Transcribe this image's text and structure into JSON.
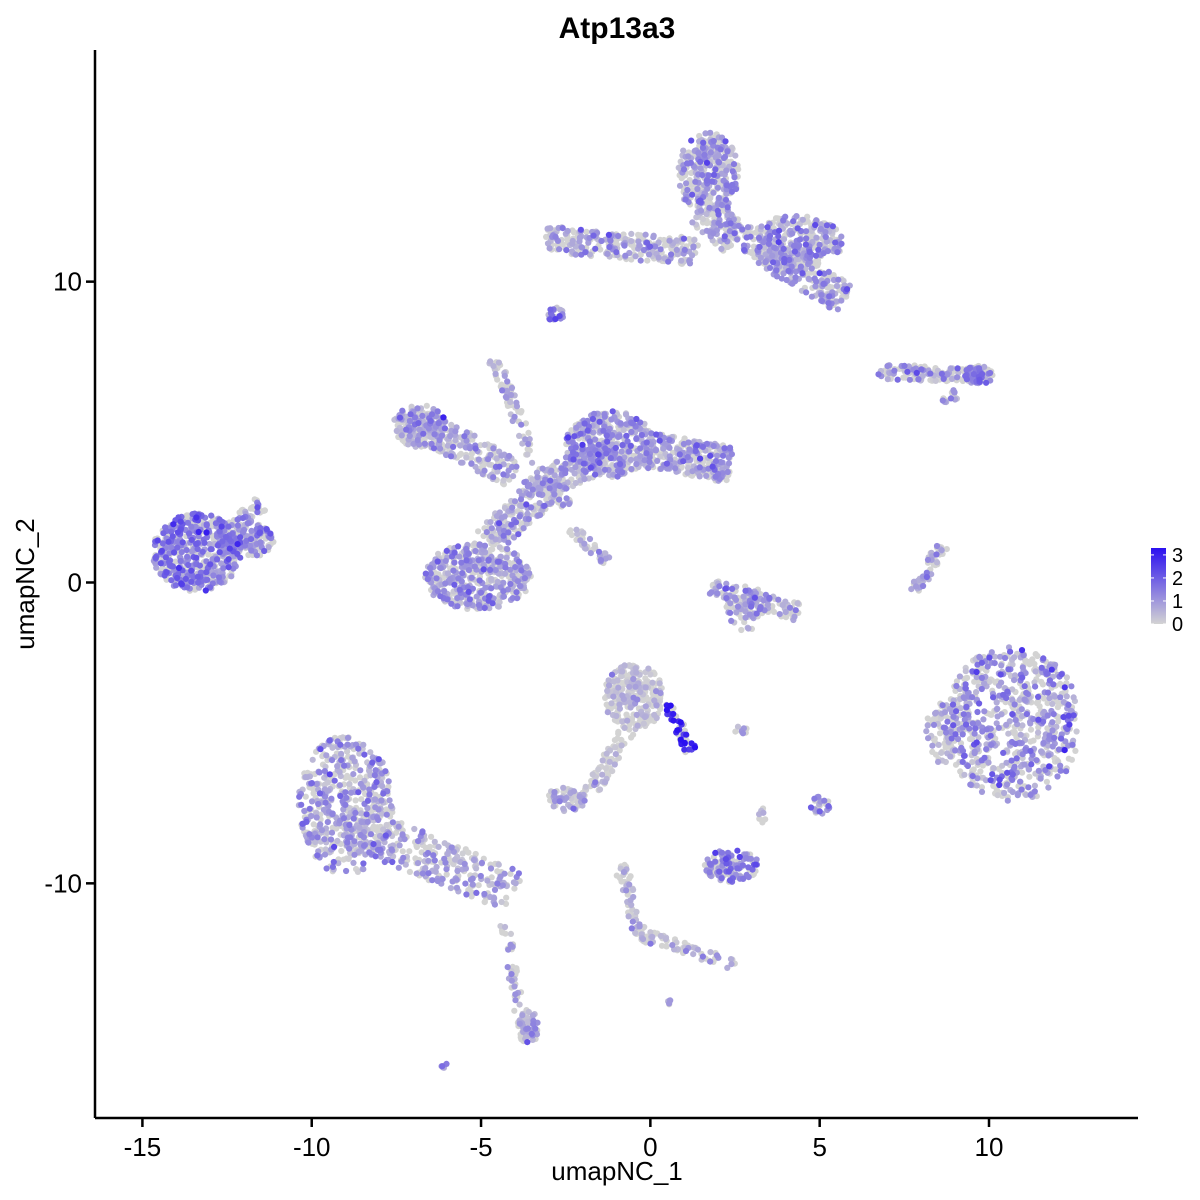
{
  "chart_data": {
    "type": "scatter",
    "title": "Atp13a3",
    "xlabel": "umapNC_1",
    "ylabel": "umapNC_2",
    "xlim": [
      -16.4,
      14.4
    ],
    "ylim": [
      -17.8,
      17.7
    ],
    "x_ticks": [
      -15,
      -10,
      -5,
      0,
      5,
      10
    ],
    "x_tick_labels": [
      "-15",
      "-10",
      "-5",
      "0",
      "5",
      "10"
    ],
    "y_ticks": [
      -10,
      0,
      10
    ],
    "y_tick_labels": [
      "-10",
      "0",
      "10"
    ],
    "grid": false,
    "legend_position": "right",
    "color_scale": {
      "low_color": "#d3d3d3",
      "high_color": "#2b10f0",
      "min": 0,
      "max": 3.3,
      "tick_values": [
        0,
        1,
        2,
        3
      ],
      "tick_labels": [
        "0",
        "1",
        "2",
        "3"
      ]
    },
    "clusters": [
      {
        "id": "c1",
        "shape": "ellipse",
        "cx": -13.4,
        "cy": 1.0,
        "rx": 1.3,
        "ry": 1.3,
        "n": 520,
        "expr_mean": 1.3,
        "expr_spread": 0.6
      },
      {
        "id": "c1b",
        "shape": "ellipse",
        "cx": -12.0,
        "cy": 1.4,
        "rx": 0.9,
        "ry": 0.6,
        "n": 180,
        "expr_mean": 1.1,
        "expr_spread": 0.6
      },
      {
        "id": "c1c",
        "shape": "segment",
        "x1": -12.4,
        "y1": 1.8,
        "x2": -11.5,
        "y2": 2.6,
        "w": 0.25,
        "n": 40,
        "expr_mean": 1.0,
        "expr_spread": 0.5
      },
      {
        "id": "c2a",
        "shape": "ellipse",
        "cx": -5.1,
        "cy": 0.2,
        "rx": 1.6,
        "ry": 1.1,
        "n": 460,
        "expr_mean": 0.8,
        "expr_spread": 0.6
      },
      {
        "id": "c2b",
        "shape": "ellipse",
        "cx": -6.8,
        "cy": 5.2,
        "rx": 0.8,
        "ry": 0.7,
        "n": 160,
        "expr_mean": 0.7,
        "expr_spread": 0.6
      },
      {
        "id": "c2c",
        "shape": "segment",
        "x1": -7.2,
        "y1": 5.5,
        "x2": -4.0,
        "y2": 3.6,
        "w": 0.5,
        "n": 240,
        "expr_mean": 0.7,
        "expr_spread": 0.6
      },
      {
        "id": "c2d",
        "shape": "segment",
        "x1": -4.8,
        "y1": 1.4,
        "x2": -3.0,
        "y2": 3.2,
        "w": 0.5,
        "n": 180,
        "expr_mean": 0.7,
        "expr_spread": 0.6
      },
      {
        "id": "c2e",
        "shape": "ellipse",
        "cx": -1.2,
        "cy": 4.6,
        "rx": 1.3,
        "ry": 1.1,
        "n": 420,
        "expr_mean": 0.9,
        "expr_spread": 0.6
      },
      {
        "id": "c2f",
        "shape": "segment",
        "x1": -0.1,
        "y1": 4.4,
        "x2": 2.4,
        "y2": 3.9,
        "w": 0.6,
        "n": 260,
        "expr_mean": 0.9,
        "expr_spread": 0.6
      },
      {
        "id": "c2g",
        "shape": "segment",
        "x1": -3.2,
        "y1": 3.3,
        "x2": -1.0,
        "y2": 4.3,
        "w": 0.5,
        "n": 180,
        "expr_mean": 0.8,
        "expr_spread": 0.6
      },
      {
        "id": "c2h",
        "shape": "segment",
        "x1": -4.6,
        "y1": 7.4,
        "x2": -3.4,
        "y2": 4.0,
        "w": 0.18,
        "n": 70,
        "expr_mean": 0.6,
        "expr_spread": 0.5
      },
      {
        "id": "c2i",
        "shape": "segment",
        "x1": -2.3,
        "y1": 1.8,
        "x2": -1.3,
        "y2": 0.7,
        "w": 0.18,
        "n": 40,
        "expr_mean": 0.6,
        "expr_spread": 0.5
      },
      {
        "id": "c2j",
        "shape": "segment",
        "x1": -2.4,
        "y1": 2.6,
        "x2": -3.7,
        "y2": 3.4,
        "w": 0.2,
        "n": 50,
        "expr_mean": 0.6,
        "expr_spread": 0.5
      },
      {
        "id": "c3a",
        "shape": "ellipse",
        "cx": 1.7,
        "cy": 13.6,
        "rx": 0.9,
        "ry": 1.4,
        "n": 320,
        "expr_mean": 0.8,
        "expr_spread": 0.6
      },
      {
        "id": "c3b",
        "shape": "segment",
        "x1": -3.1,
        "y1": 11.4,
        "x2": 1.4,
        "y2": 11.0,
        "w": 0.45,
        "n": 260,
        "expr_mean": 0.7,
        "expr_spread": 0.6
      },
      {
        "id": "c3c",
        "shape": "ellipse",
        "cx": 4.2,
        "cy": 11.3,
        "rx": 1.5,
        "ry": 0.9,
        "n": 320,
        "expr_mean": 0.8,
        "expr_spread": 0.6
      },
      {
        "id": "c3d",
        "shape": "segment",
        "x1": 3.4,
        "y1": 11.0,
        "x2": 5.8,
        "y2": 9.4,
        "w": 0.5,
        "n": 200,
        "expr_mean": 0.8,
        "expr_spread": 0.6
      },
      {
        "id": "c3e",
        "shape": "segment",
        "x1": 1.6,
        "y1": 12.4,
        "x2": 2.6,
        "y2": 11.4,
        "w": 0.6,
        "n": 120,
        "expr_mean": 0.8,
        "expr_spread": 0.6
      },
      {
        "id": "c3f",
        "shape": "ellipse",
        "cx": -2.8,
        "cy": 8.9,
        "rx": 0.25,
        "ry": 0.25,
        "n": 25,
        "expr_mean": 1.1,
        "expr_spread": 0.5
      },
      {
        "id": "c4a",
        "shape": "segment",
        "x1": 6.7,
        "y1": 7.0,
        "x2": 9.9,
        "y2": 6.9,
        "w": 0.25,
        "n": 140,
        "expr_mean": 0.9,
        "expr_spread": 0.6
      },
      {
        "id": "c4b",
        "shape": "ellipse",
        "cx": 9.7,
        "cy": 6.9,
        "rx": 0.45,
        "ry": 0.3,
        "n": 60,
        "expr_mean": 1.3,
        "expr_spread": 0.5
      },
      {
        "id": "c4c",
        "shape": "segment",
        "x1": 8.5,
        "y1": 6.0,
        "x2": 9.1,
        "y2": 6.3,
        "w": 0.15,
        "n": 15,
        "expr_mean": 0.7,
        "expr_spread": 0.5
      },
      {
        "id": "c5",
        "shape": "ellipse",
        "cx": 10.7,
        "cy": -4.7,
        "rx": 2.0,
        "ry": 2.6,
        "n": 700,
        "expr_mean": 0.9,
        "expr_spread": 0.7
      },
      {
        "id": "c5b",
        "shape": "ellipse",
        "cx": 8.6,
        "cy": -5.0,
        "rx": 0.5,
        "ry": 1.0,
        "n": 80,
        "expr_mean": 0.6,
        "expr_spread": 0.6
      },
      {
        "id": "c6",
        "shape": "segment",
        "x1": 7.8,
        "y1": -0.3,
        "x2": 8.6,
        "y2": 1.2,
        "w": 0.18,
        "n": 55,
        "expr_mean": 0.6,
        "expr_spread": 0.5
      },
      {
        "id": "c7a",
        "shape": "ellipse",
        "cx": -9.0,
        "cy": -7.4,
        "rx": 1.4,
        "ry": 2.3,
        "n": 500,
        "expr_mean": 0.8,
        "expr_spread": 0.6
      },
      {
        "id": "c7b",
        "shape": "segment",
        "x1": -9.0,
        "y1": -8.0,
        "x2": -4.0,
        "y2": -10.3,
        "w": 0.7,
        "n": 320,
        "expr_mean": 0.7,
        "expr_spread": 0.6
      },
      {
        "id": "c7c",
        "shape": "segment",
        "x1": -4.3,
        "y1": -11.3,
        "x2": -3.8,
        "y2": -14.8,
        "w": 0.15,
        "n": 45,
        "expr_mean": 0.6,
        "expr_spread": 0.5
      },
      {
        "id": "c7d",
        "shape": "ellipse",
        "cx": -3.6,
        "cy": -14.8,
        "rx": 0.3,
        "ry": 0.6,
        "n": 60,
        "expr_mean": 0.8,
        "expr_spread": 0.5
      },
      {
        "id": "c8a",
        "shape": "ellipse",
        "cx": -0.5,
        "cy": -3.8,
        "rx": 0.9,
        "ry": 1.1,
        "n": 260,
        "expr_mean": 0.2,
        "expr_spread": 0.4
      },
      {
        "id": "c8b",
        "shape": "segment",
        "x1": 0.5,
        "y1": -4.0,
        "x2": 1.2,
        "y2": -5.6,
        "w": 0.18,
        "n": 45,
        "expr_mean": 2.8,
        "expr_spread": 0.4
      },
      {
        "id": "c8c",
        "shape": "segment",
        "x1": -0.6,
        "y1": -4.8,
        "x2": -1.8,
        "y2": -7.0,
        "w": 0.25,
        "n": 60,
        "expr_mean": 0.2,
        "expr_spread": 0.4
      },
      {
        "id": "c8d",
        "shape": "ellipse",
        "cx": -2.5,
        "cy": -7.2,
        "rx": 0.6,
        "ry": 0.4,
        "n": 60,
        "expr_mean": 0.4,
        "expr_spread": 0.5
      },
      {
        "id": "c9a",
        "shape": "segment",
        "x1": -0.9,
        "y1": -9.3,
        "x2": -0.3,
        "y2": -11.7,
        "w": 0.2,
        "n": 55,
        "expr_mean": 0.5,
        "expr_spread": 0.5
      },
      {
        "id": "c9b",
        "shape": "segment",
        "x1": -0.3,
        "y1": -11.7,
        "x2": 2.5,
        "y2": -12.7,
        "w": 0.2,
        "n": 70,
        "expr_mean": 0.5,
        "expr_spread": 0.5
      },
      {
        "id": "c10",
        "shape": "ellipse",
        "cx": 2.4,
        "cy": -9.4,
        "rx": 0.8,
        "ry": 0.55,
        "n": 130,
        "expr_mean": 1.3,
        "expr_spread": 0.5
      },
      {
        "id": "c11a",
        "shape": "ellipse",
        "cx": 2.8,
        "cy": -0.8,
        "rx": 0.6,
        "ry": 0.8,
        "n": 80,
        "expr_mean": 0.7,
        "expr_spread": 0.6
      },
      {
        "id": "c11b",
        "shape": "segment",
        "x1": 1.8,
        "y1": -0.2,
        "x2": 4.4,
        "y2": -1.0,
        "w": 0.3,
        "n": 110,
        "expr_mean": 0.9,
        "expr_spread": 0.6
      },
      {
        "id": "c12",
        "shape": "ellipse",
        "cx": 5.0,
        "cy": -7.4,
        "rx": 0.3,
        "ry": 0.3,
        "n": 28,
        "expr_mean": 1.0,
        "expr_spread": 0.5
      },
      {
        "id": "c13",
        "shape": "segment",
        "x1": 2.5,
        "y1": -4.9,
        "x2": 3.0,
        "y2": -4.9,
        "w": 0.12,
        "n": 10,
        "expr_mean": 0.8,
        "expr_spread": 0.5
      },
      {
        "id": "c14",
        "shape": "segment",
        "x1": 3.2,
        "y1": -7.5,
        "x2": 3.4,
        "y2": -8.0,
        "w": 0.12,
        "n": 8,
        "expr_mean": 0.7,
        "expr_spread": 0.5
      },
      {
        "id": "c15",
        "shape": "segment",
        "x1": -6.2,
        "y1": -16.1,
        "x2": -6.0,
        "y2": -16.0,
        "w": 0.08,
        "n": 6,
        "expr_mean": 0.8,
        "expr_spread": 0.4
      },
      {
        "id": "c16",
        "shape": "segment",
        "x1": 0.5,
        "y1": -13.9,
        "x2": 0.6,
        "y2": -14.0,
        "w": 0.08,
        "n": 5,
        "expr_mean": 0.8,
        "expr_spread": 0.4
      }
    ]
  }
}
